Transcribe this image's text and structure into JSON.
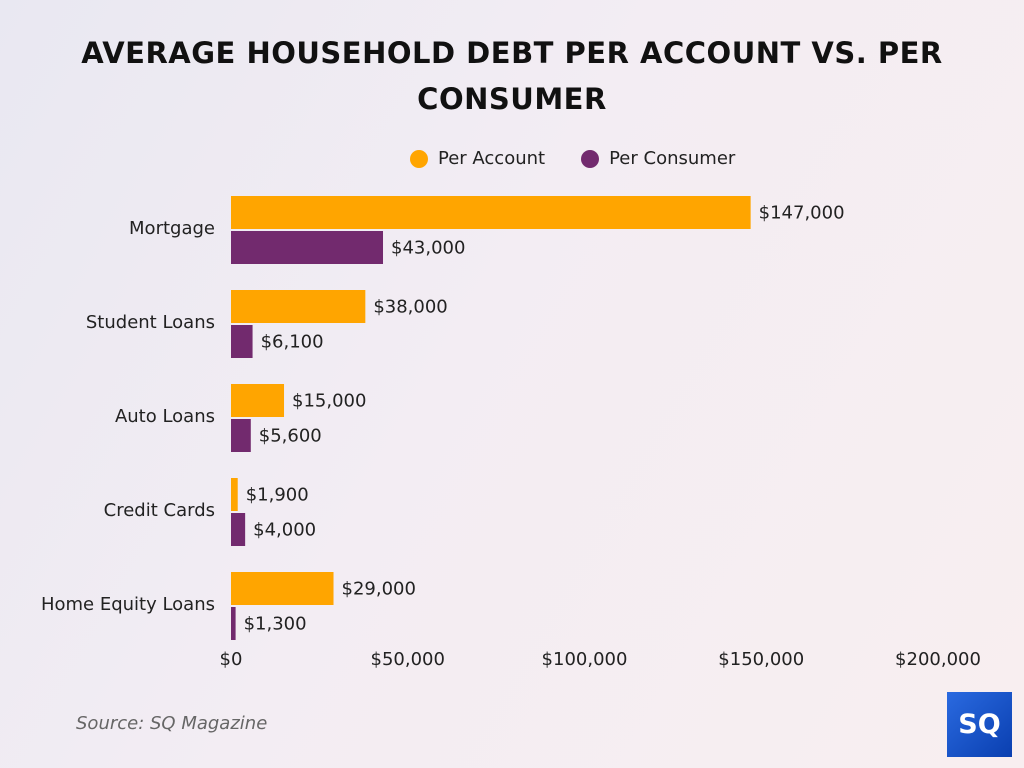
{
  "chart_data": {
    "type": "bar",
    "orientation": "horizontal",
    "title": "AVERAGE HOUSEHOLD DEBT PER ACCOUNT VS. PER CONSUMER",
    "categories": [
      "Mortgage",
      "Student Loans",
      "Auto Loans",
      "Credit Cards",
      "Home Equity Loans"
    ],
    "series": [
      {
        "name": "Per Account",
        "color": "#FFA500",
        "values": [
          147000,
          38000,
          15000,
          1900,
          29000
        ],
        "labels": [
          "$147,000",
          "$38,000",
          "$15,000",
          "$1,900",
          "$29,000"
        ]
      },
      {
        "name": "Per Consumer",
        "color": "#722A6E",
        "values": [
          43000,
          6100,
          5600,
          4000,
          1300
        ],
        "labels": [
          "$43,000",
          "$6,100",
          "$5,600",
          "$4,000",
          "$1,300"
        ]
      }
    ],
    "xlim": [
      0,
      200000
    ],
    "xticks": [
      0,
      50000,
      100000,
      150000,
      200000
    ],
    "xtick_labels": [
      "$0",
      "$50,000",
      "$100,000",
      "$150,000",
      "$200,000"
    ],
    "grid": false,
    "legend_position": "top"
  },
  "source": "Source: SQ Magazine",
  "logo_text": "SQ"
}
